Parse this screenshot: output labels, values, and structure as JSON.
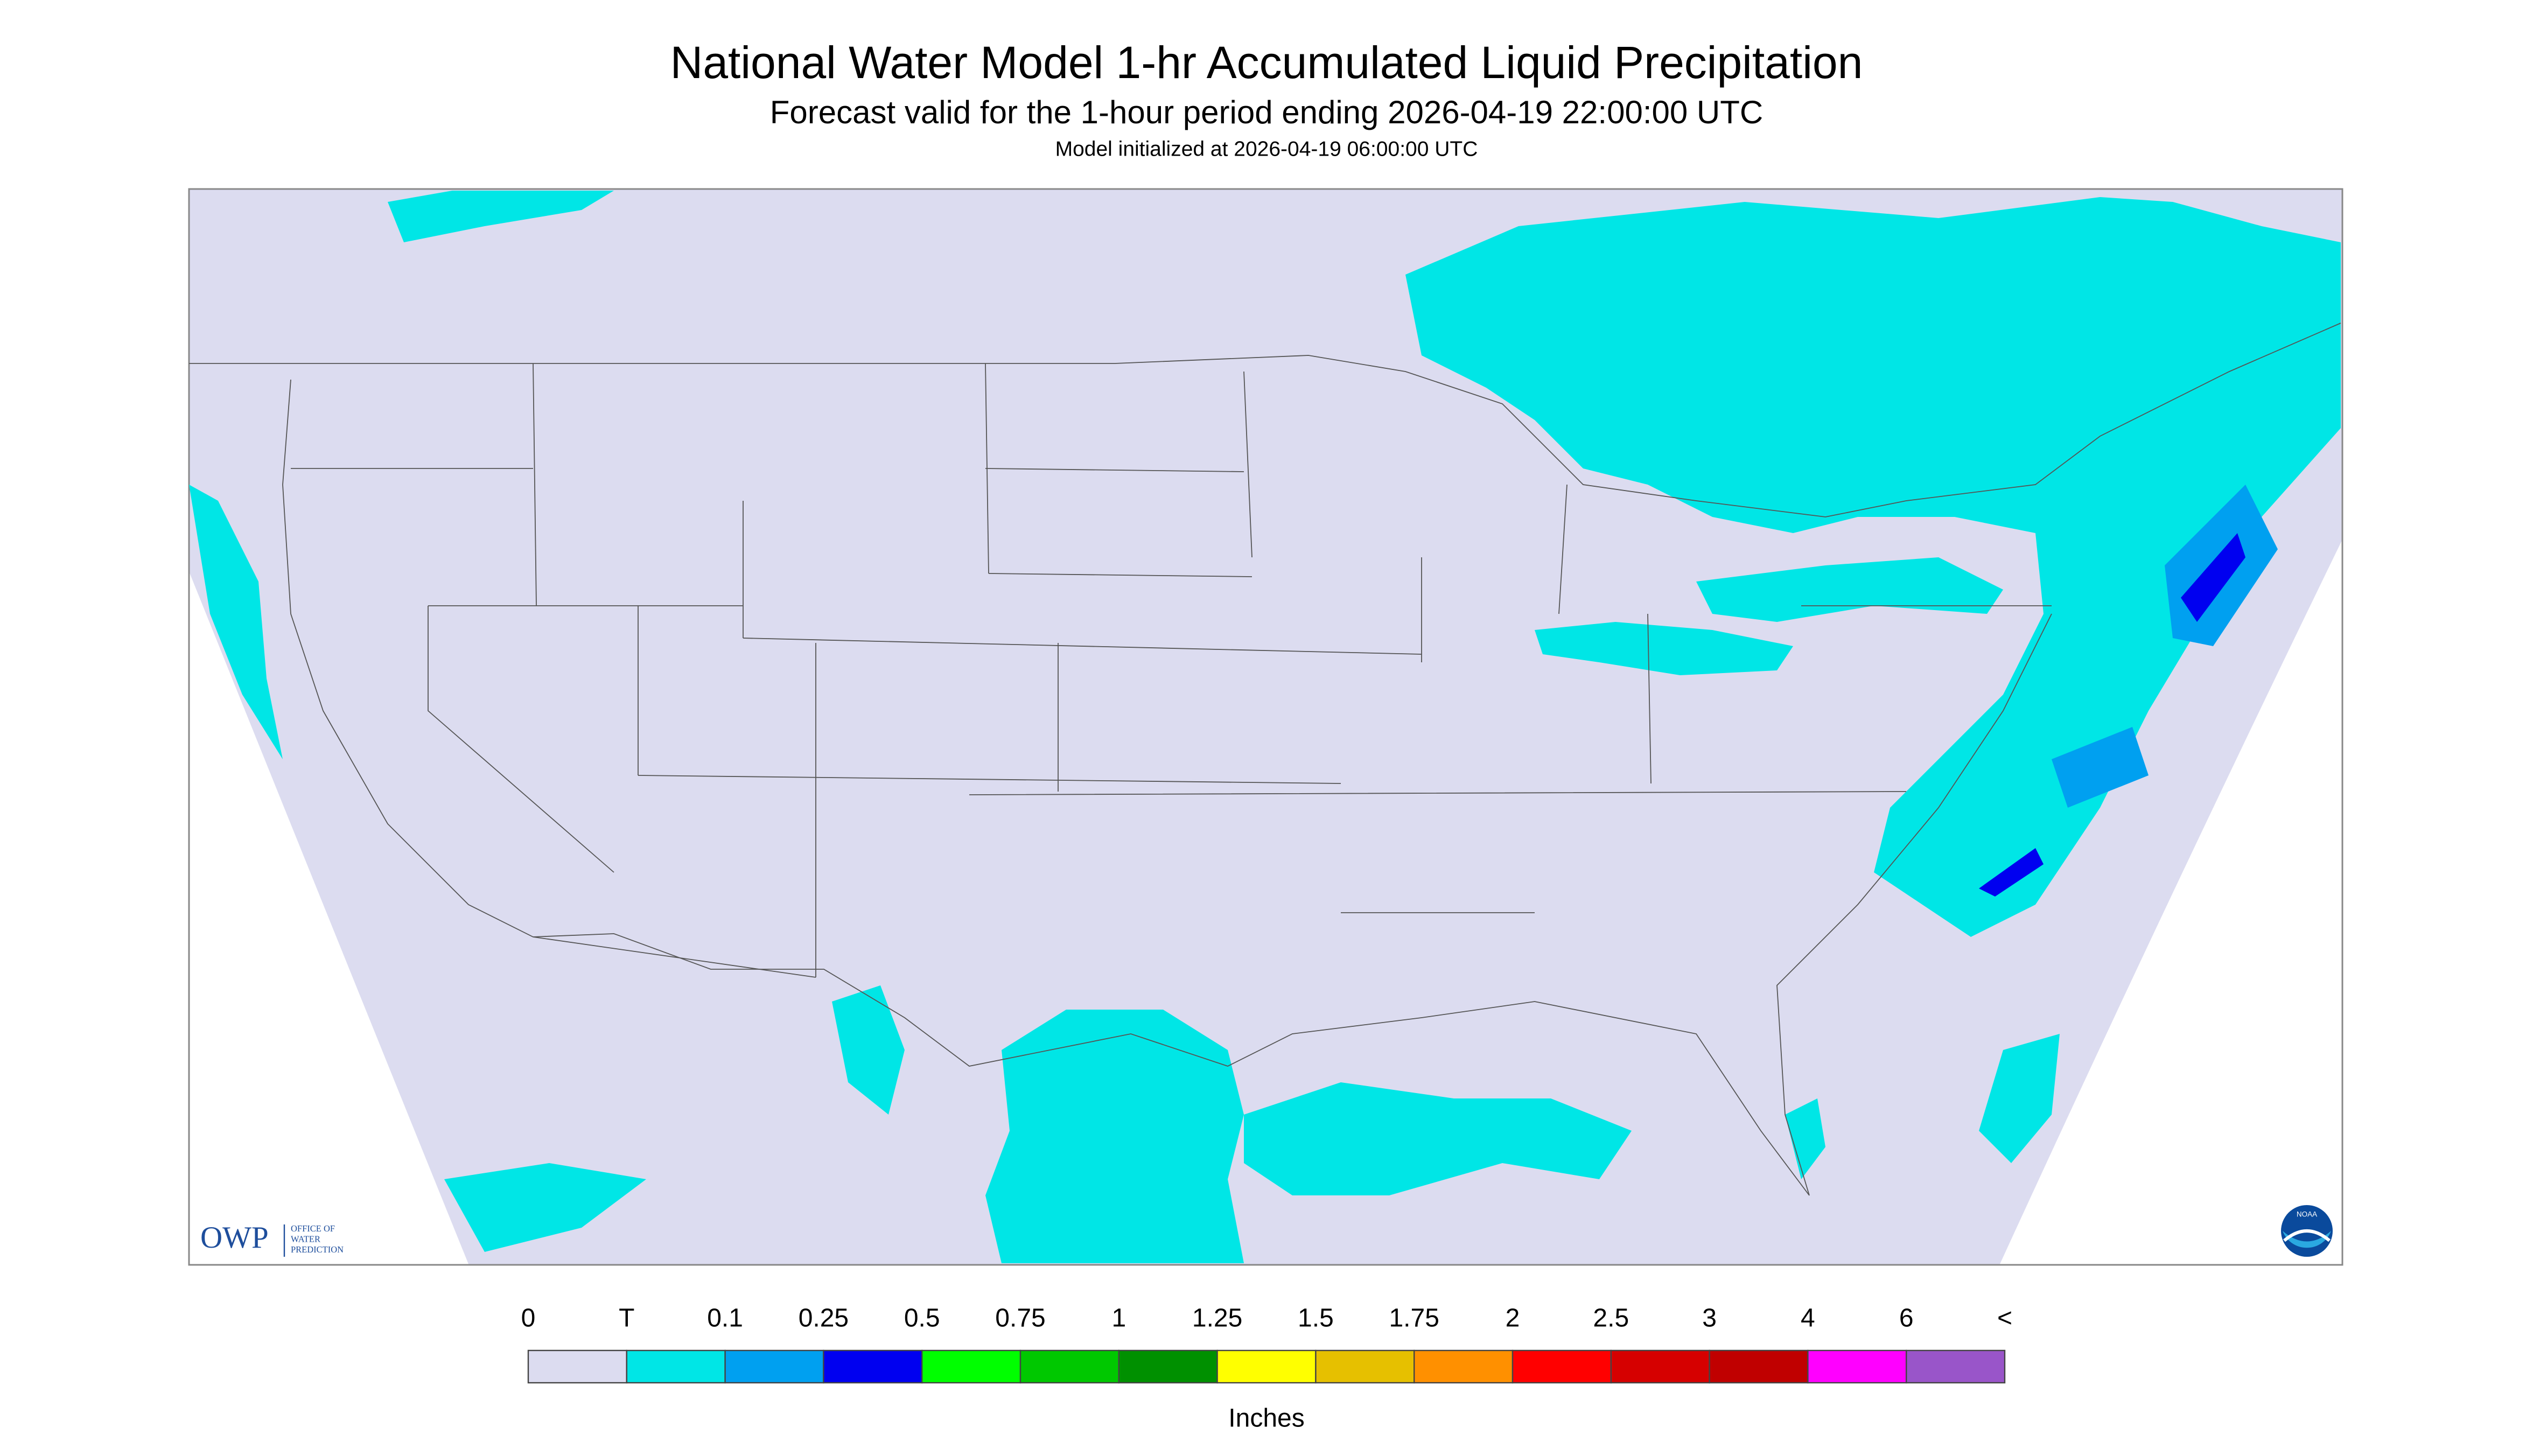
{
  "header": {
    "title": "National Water Model 1-hr Accumulated Liquid Precipitation",
    "subtitle": "Forecast valid for the 1-hour period ending 2026-04-19 22:00:00 UTC",
    "init": "Model initialized at 2026-04-19 06:00:00 UTC"
  },
  "logos": {
    "owp": "OWP",
    "owp_full": [
      "OFFICE OF",
      "WATER",
      "PREDICTION"
    ],
    "noaa": "NOAA"
  },
  "legend": {
    "labels": [
      "0",
      "T",
      "0.1",
      "0.25",
      "0.5",
      "0.75",
      "1",
      "1.25",
      "1.5",
      "1.75",
      "2",
      "2.5",
      "3",
      "4",
      "6",
      "<"
    ],
    "colors": [
      "#dcdcf0",
      "#00e6e6",
      "#00a0f0",
      "#0000f0",
      "#00ff00",
      "#00c800",
      "#009000",
      "#ffff00",
      "#e6c000",
      "#ff9000",
      "#ff0000",
      "#d60000",
      "#c00000",
      "#ff00ff",
      "#9955c9"
    ],
    "units": "Inches"
  }
}
